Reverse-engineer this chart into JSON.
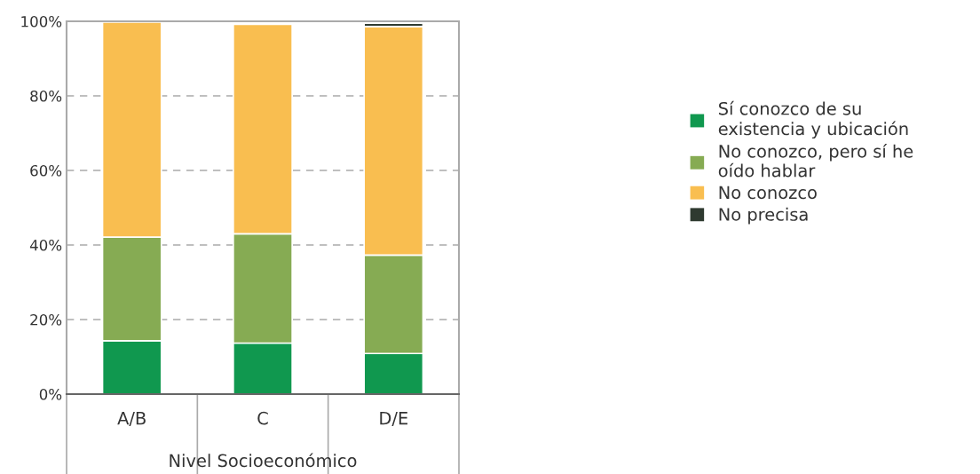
{
  "chart_data": {
    "type": "bar",
    "stacked": true,
    "xlabel": "Nivel Socioeconómico",
    "categories": [
      "A/B",
      "C",
      "D/E"
    ],
    "series": [
      {
        "name": "Sí conozco de su existencia y ubicación",
        "color": "#10984f",
        "values": [
          14.3,
          13.7,
          10.9
        ]
      },
      {
        "name": "No conozco, pero sí he oído hablar",
        "color": "#86ab53",
        "values": [
          27.8,
          29.3,
          26.4
        ]
      },
      {
        "name": "No conozco",
        "color": "#f9be50",
        "values": [
          57.7,
          56.2,
          61.3
        ]
      },
      {
        "name": "No precisa",
        "color": "#2f3a30",
        "values": [
          null,
          null,
          0.9
        ]
      }
    ],
    "ylim": [
      0,
      100
    ],
    "yticks": [
      {
        "value": 0,
        "label": "0%"
      },
      {
        "value": 20,
        "label": "20%"
      },
      {
        "value": 40,
        "label": "40%"
      },
      {
        "value": 60,
        "label": "60%"
      },
      {
        "value": 80,
        "label": "80%"
      },
      {
        "value": 100,
        "label": "100%"
      }
    ],
    "grid": "y",
    "legend": "right"
  }
}
